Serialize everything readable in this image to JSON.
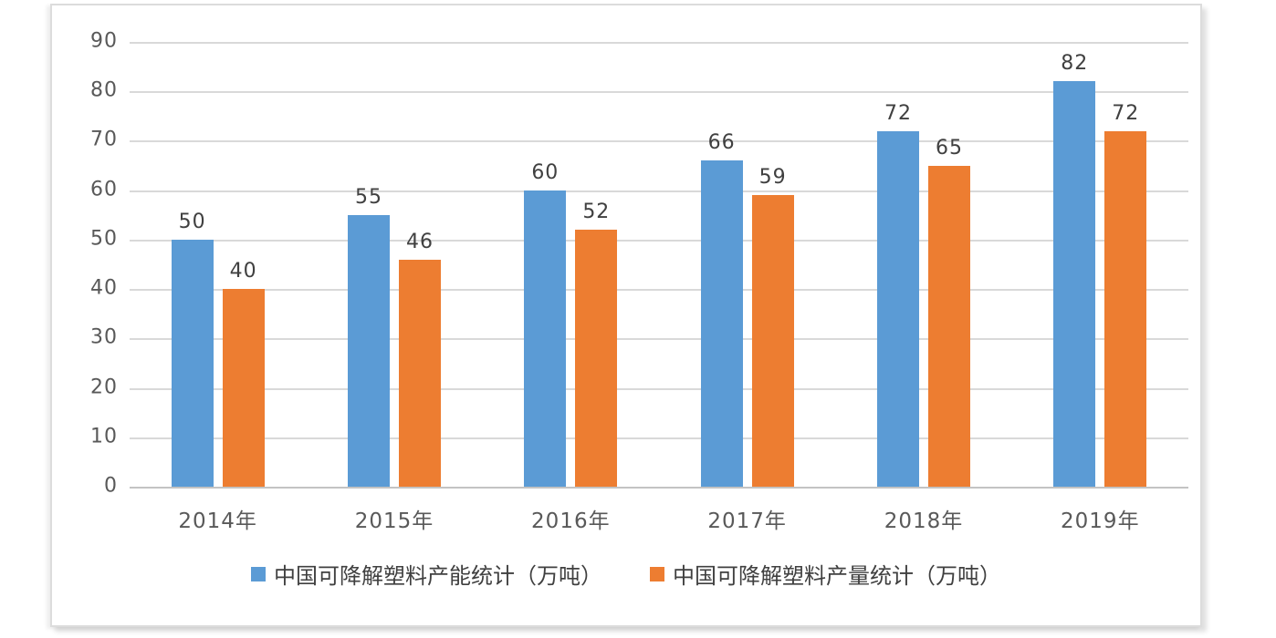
{
  "chart_data": {
    "type": "bar",
    "categories": [
      "2014年",
      "2015年",
      "2016年",
      "2017年",
      "2018年",
      "2019年"
    ],
    "series": [
      {
        "name": "中国可降解塑料产能统计（万吨）",
        "color": "#5B9BD5",
        "values": [
          50,
          55,
          60,
          66,
          72,
          82
        ]
      },
      {
        "name": "中国可降解塑料产量统计（万吨）",
        "color": "#ED7D31",
        "values": [
          40,
          46,
          52,
          59,
          65,
          72
        ]
      }
    ],
    "title": "",
    "xlabel": "",
    "ylabel": "",
    "ylim": [
      0,
      90
    ],
    "ytick_labels": [
      "0",
      "10",
      "20",
      "30",
      "40",
      "50",
      "60",
      "70",
      "80",
      "90"
    ],
    "grid": true,
    "legend_position": "bottom",
    "data_labels": true
  },
  "style": {
    "gridline_color": "#d9d9d9",
    "axis_text_color": "#595959",
    "data_label_color": "#404040",
    "frame_border_color": "#dcdcdc",
    "background_color": "#ffffff"
  }
}
